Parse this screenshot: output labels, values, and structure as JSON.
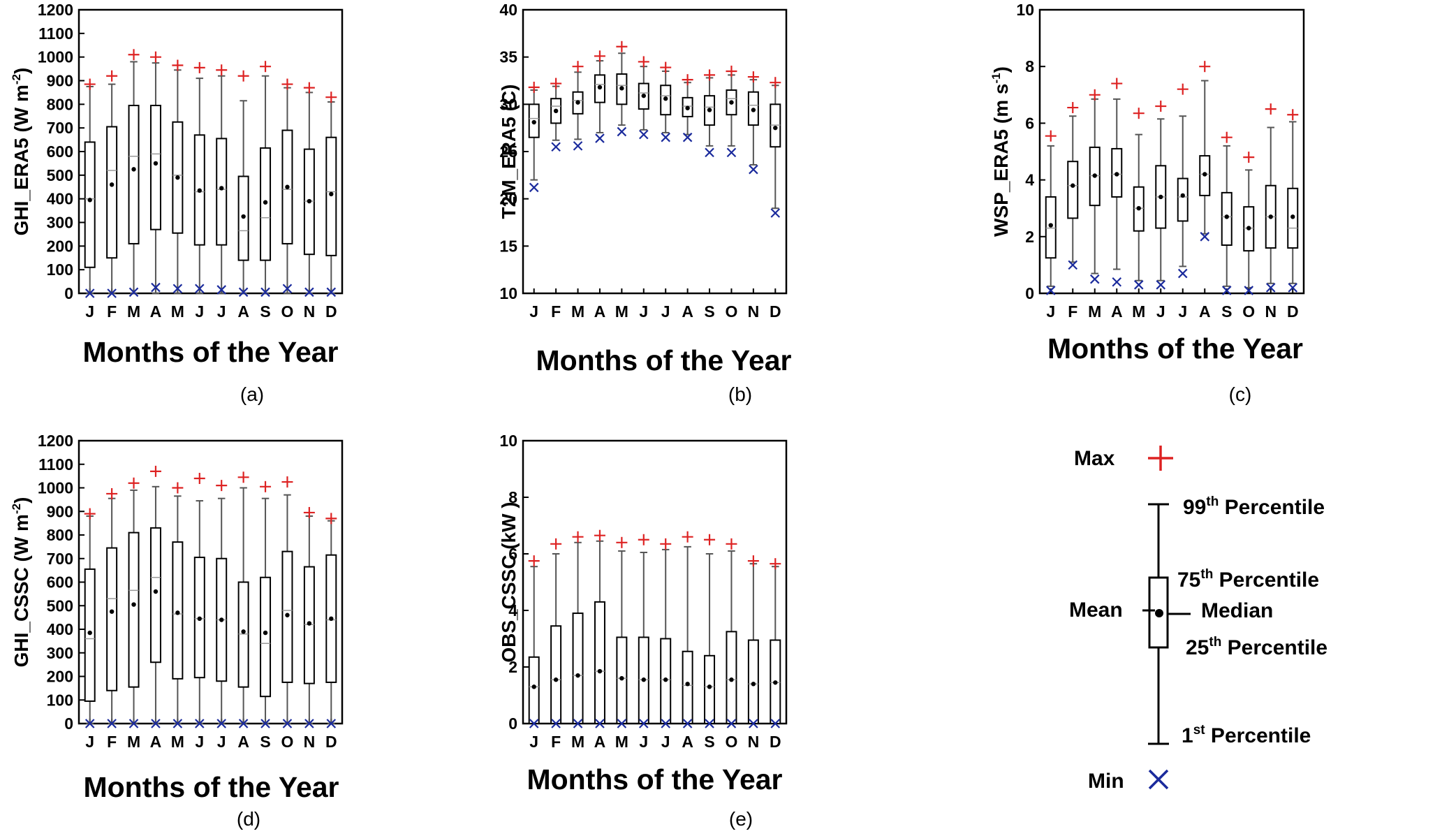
{
  "colors": {
    "max": "#dd2222",
    "min": "#1a2a9c",
    "box": "#000000",
    "whisker": "#555555"
  },
  "chart_data": [
    {
      "type": "box",
      "panel_label": "(a)",
      "ylabel_main": "GHI_ERA5 (W m",
      "ylabel_sup": "-2",
      "ylabel_end": ")",
      "xlabel": "Months of the Year",
      "ylim": [
        0,
        1200
      ],
      "yticks": [
        0,
        100,
        200,
        300,
        400,
        500,
        600,
        700,
        800,
        900,
        1000,
        1100,
        1200
      ],
      "categories": [
        "J",
        "F",
        "M",
        "A",
        "M",
        "J",
        "J",
        "A",
        "S",
        "O",
        "N",
        "D"
      ],
      "max": [
        885,
        920,
        1010,
        1000,
        965,
        955,
        945,
        920,
        960,
        885,
        870,
        830
      ],
      "p99": [
        875,
        885,
        980,
        975,
        945,
        910,
        920,
        815,
        920,
        870,
        850,
        810
      ],
      "p75": [
        640,
        705,
        795,
        795,
        725,
        670,
        655,
        495,
        615,
        690,
        610,
        660
      ],
      "median": [
        400,
        520,
        580,
        590,
        500,
        430,
        440,
        265,
        320,
        440,
        390,
        430
      ],
      "mean": [
        395,
        460,
        525,
        550,
        490,
        435,
        445,
        325,
        385,
        450,
        390,
        420
      ],
      "p25": [
        110,
        150,
        210,
        270,
        255,
        205,
        205,
        140,
        140,
        210,
        165,
        160
      ],
      "p1": [
        0,
        0,
        0,
        0,
        0,
        0,
        0,
        0,
        0,
        0,
        0,
        0
      ],
      "min": [
        0,
        0,
        5,
        25,
        20,
        20,
        15,
        5,
        5,
        20,
        5,
        5
      ]
    },
    {
      "type": "box",
      "panel_label": "(b)",
      "ylabel_main": "T2M_ERA5 (C)",
      "ylabel_sup": "",
      "ylabel_end": "",
      "xlabel": "Months of the Year",
      "ylim": [
        10,
        40
      ],
      "yticks": [
        10,
        15,
        20,
        25,
        30,
        35,
        40
      ],
      "categories": [
        "J",
        "F",
        "M",
        "A",
        "M",
        "J",
        "J",
        "A",
        "S",
        "O",
        "N",
        "D"
      ],
      "max": [
        31.8,
        32.2,
        34,
        35.1,
        36.1,
        34.5,
        33.9,
        32.6,
        33.1,
        33.5,
        32.9,
        32.3
      ],
      "p99": [
        31.5,
        31.9,
        33.4,
        34.6,
        35.4,
        34.0,
        33.5,
        32.3,
        32.8,
        33.1,
        32.6,
        32.0
      ],
      "p75": [
        30.0,
        30.6,
        31.3,
        33.1,
        33.2,
        32.2,
        32.0,
        30.7,
        30.9,
        31.5,
        31.3,
        30.0
      ],
      "median": [
        28.5,
        29.8,
        30.4,
        32.1,
        32.0,
        31.2,
        30.9,
        29.8,
        29.7,
        30.6,
        29.9,
        27.8
      ],
      "mean": [
        28.1,
        29.3,
        30.2,
        31.8,
        31.7,
        30.9,
        30.6,
        29.6,
        29.4,
        30.2,
        29.4,
        27.5
      ],
      "p25": [
        26.5,
        28.0,
        29.0,
        30.2,
        30.0,
        29.5,
        28.9,
        28.7,
        27.8,
        28.9,
        27.8,
        25.5
      ],
      "p1": [
        22.0,
        26.2,
        26.3,
        27.0,
        27.8,
        27.3,
        27.0,
        26.8,
        25.6,
        25.6,
        23.6,
        19.0
      ],
      "min": [
        21.2,
        25.5,
        25.6,
        26.4,
        27.1,
        26.8,
        26.5,
        26.5,
        24.9,
        24.9,
        23.1,
        18.5
      ]
    },
    {
      "type": "box",
      "panel_label": "(c)",
      "ylabel_main": "WSP_ERA5 (m s",
      "ylabel_sup": "-1",
      "ylabel_end": ")",
      "xlabel": "Months of the Year",
      "ylim": [
        0,
        10
      ],
      "yticks": [
        0,
        2,
        4,
        6,
        8,
        10
      ],
      "categories": [
        "J",
        "F",
        "M",
        "A",
        "M",
        "J",
        "J",
        "A",
        "S",
        "O",
        "N",
        "D"
      ],
      "max": [
        5.55,
        6.55,
        7.0,
        7.4,
        6.35,
        6.6,
        7.2,
        8.0,
        5.5,
        4.8,
        6.5,
        6.3
      ],
      "p99": [
        5.2,
        6.25,
        6.85,
        6.85,
        5.6,
        6.15,
        6.25,
        7.5,
        5.2,
        4.35,
        5.85,
        6.05
      ],
      "p75": [
        3.4,
        4.65,
        5.15,
        5.1,
        3.75,
        4.5,
        4.05,
        4.85,
        3.55,
        3.05,
        3.8,
        3.7
      ],
      "median": [
        2.3,
        3.8,
        4.15,
        4.2,
        3.0,
        3.4,
        3.4,
        4.2,
        2.7,
        2.3,
        2.7,
        2.3
      ],
      "mean": [
        2.4,
        3.8,
        4.15,
        4.2,
        3.0,
        3.4,
        3.45,
        4.2,
        2.7,
        2.3,
        2.7,
        2.7
      ],
      "p25": [
        1.25,
        2.65,
        3.1,
        3.4,
        2.2,
        2.3,
        2.55,
        3.45,
        1.7,
        1.5,
        1.6,
        1.6
      ],
      "p1": [
        0.25,
        1.1,
        0.7,
        0.85,
        0.45,
        0.45,
        0.95,
        2.1,
        0.25,
        0.2,
        0.35,
        0.35
      ],
      "min": [
        0.1,
        1.0,
        0.5,
        0.4,
        0.3,
        0.3,
        0.7,
        2.0,
        0.1,
        0.1,
        0.2,
        0.2
      ]
    },
    {
      "type": "box",
      "panel_label": "(d)",
      "ylabel_main": "GHI_CSSC (W m",
      "ylabel_sup": "-2",
      "ylabel_end": ")",
      "xlabel": "Months of the Year",
      "ylim": [
        0,
        1200
      ],
      "yticks": [
        0,
        100,
        200,
        300,
        400,
        500,
        600,
        700,
        800,
        900,
        1000,
        1100,
        1200
      ],
      "categories": [
        "J",
        "F",
        "M",
        "A",
        "M",
        "J",
        "J",
        "A",
        "S",
        "O",
        "N",
        "D"
      ],
      "max": [
        890,
        975,
        1020,
        1070,
        1000,
        1040,
        1010,
        1045,
        1005,
        1025,
        895,
        870
      ],
      "p99": [
        880,
        955,
        990,
        1005,
        965,
        945,
        955,
        1000,
        955,
        970,
        880,
        860
      ],
      "p75": [
        655,
        745,
        810,
        830,
        770,
        705,
        700,
        600,
        620,
        730,
        665,
        715
      ],
      "median": [
        360,
        530,
        565,
        620,
        465,
        445,
        440,
        380,
        340,
        480,
        420,
        440
      ],
      "mean": [
        385,
        475,
        505,
        560,
        470,
        445,
        440,
        390,
        385,
        460,
        425,
        445
      ],
      "p25": [
        95,
        140,
        155,
        260,
        190,
        195,
        180,
        155,
        115,
        175,
        170,
        175
      ],
      "p1": [
        0,
        0,
        0,
        0,
        0,
        0,
        0,
        0,
        0,
        0,
        0,
        0
      ],
      "min": [
        0,
        0,
        0,
        0,
        0,
        0,
        0,
        0,
        0,
        0,
        0,
        0
      ]
    },
    {
      "type": "box",
      "panel_label": "(e)",
      "ylabel_main": "OBS_CSSC (kW )",
      "ylabel_sup": "",
      "ylabel_end": "",
      "xlabel": "Months of the Year",
      "ylim": [
        0,
        10
      ],
      "yticks": [
        0,
        2,
        4,
        6,
        8,
        10
      ],
      "categories": [
        "J",
        "F",
        "M",
        "A",
        "M",
        "J",
        "J",
        "A",
        "S",
        "O",
        "N",
        "D"
      ],
      "max": [
        5.75,
        6.35,
        6.6,
        6.65,
        6.4,
        6.5,
        6.35,
        6.6,
        6.5,
        6.35,
        5.75,
        5.65
      ],
      "p99": [
        5.55,
        6.0,
        6.4,
        6.45,
        6.1,
        6.05,
        6.15,
        6.25,
        6.0,
        6.1,
        5.65,
        5.55
      ],
      "p75": [
        2.35,
        3.45,
        3.9,
        4.3,
        3.05,
        3.05,
        3.0,
        2.55,
        2.4,
        3.25,
        2.95,
        2.95
      ],
      "median": [
        1.3,
        1.55,
        1.7,
        1.85,
        1.6,
        1.55,
        1.55,
        1.35,
        1.3,
        1.55,
        1.4,
        1.45
      ],
      "mean": [
        1.3,
        1.55,
        1.7,
        1.85,
        1.6,
        1.55,
        1.55,
        1.4,
        1.3,
        1.55,
        1.4,
        1.45
      ],
      "p25": [
        0,
        0,
        0,
        0,
        0,
        0,
        0,
        0,
        0,
        0,
        0,
        0
      ],
      "p1": [
        0,
        0,
        0,
        0,
        0,
        0,
        0,
        0,
        0,
        0,
        0,
        0
      ],
      "min": [
        0,
        0,
        0,
        0,
        0,
        0,
        0,
        0,
        0,
        0,
        0,
        0
      ]
    }
  ],
  "legend": {
    "max": "Max",
    "p99_num": "99",
    "p75_num": "75",
    "p25_num": "25",
    "p1_num": "1",
    "sup_th": "th",
    "sup_st": "st",
    "percentile": " Percentile",
    "mean": "Mean",
    "median": "Median",
    "min": "Min"
  }
}
